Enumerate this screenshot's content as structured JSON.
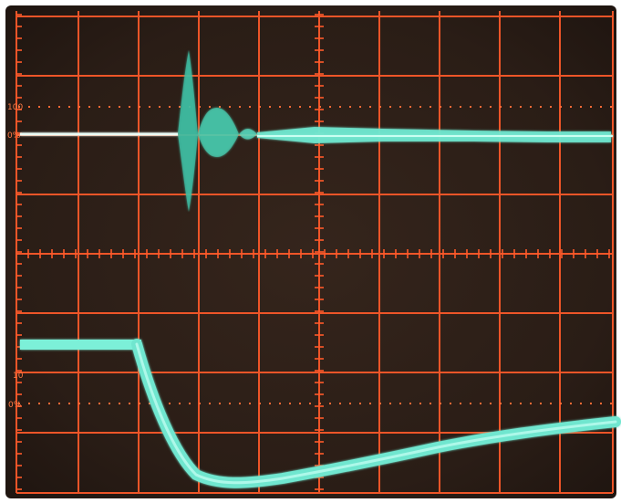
{
  "screen": {
    "background": "#2b1e17",
    "graticule_color": "#ff5a2a",
    "trace_color": "#6fe6cf",
    "frame_color": "#ffffff"
  },
  "labels": {
    "top_100": "100",
    "top_0": "0%",
    "mid_10": "10",
    "mid_0": "0%"
  }
}
